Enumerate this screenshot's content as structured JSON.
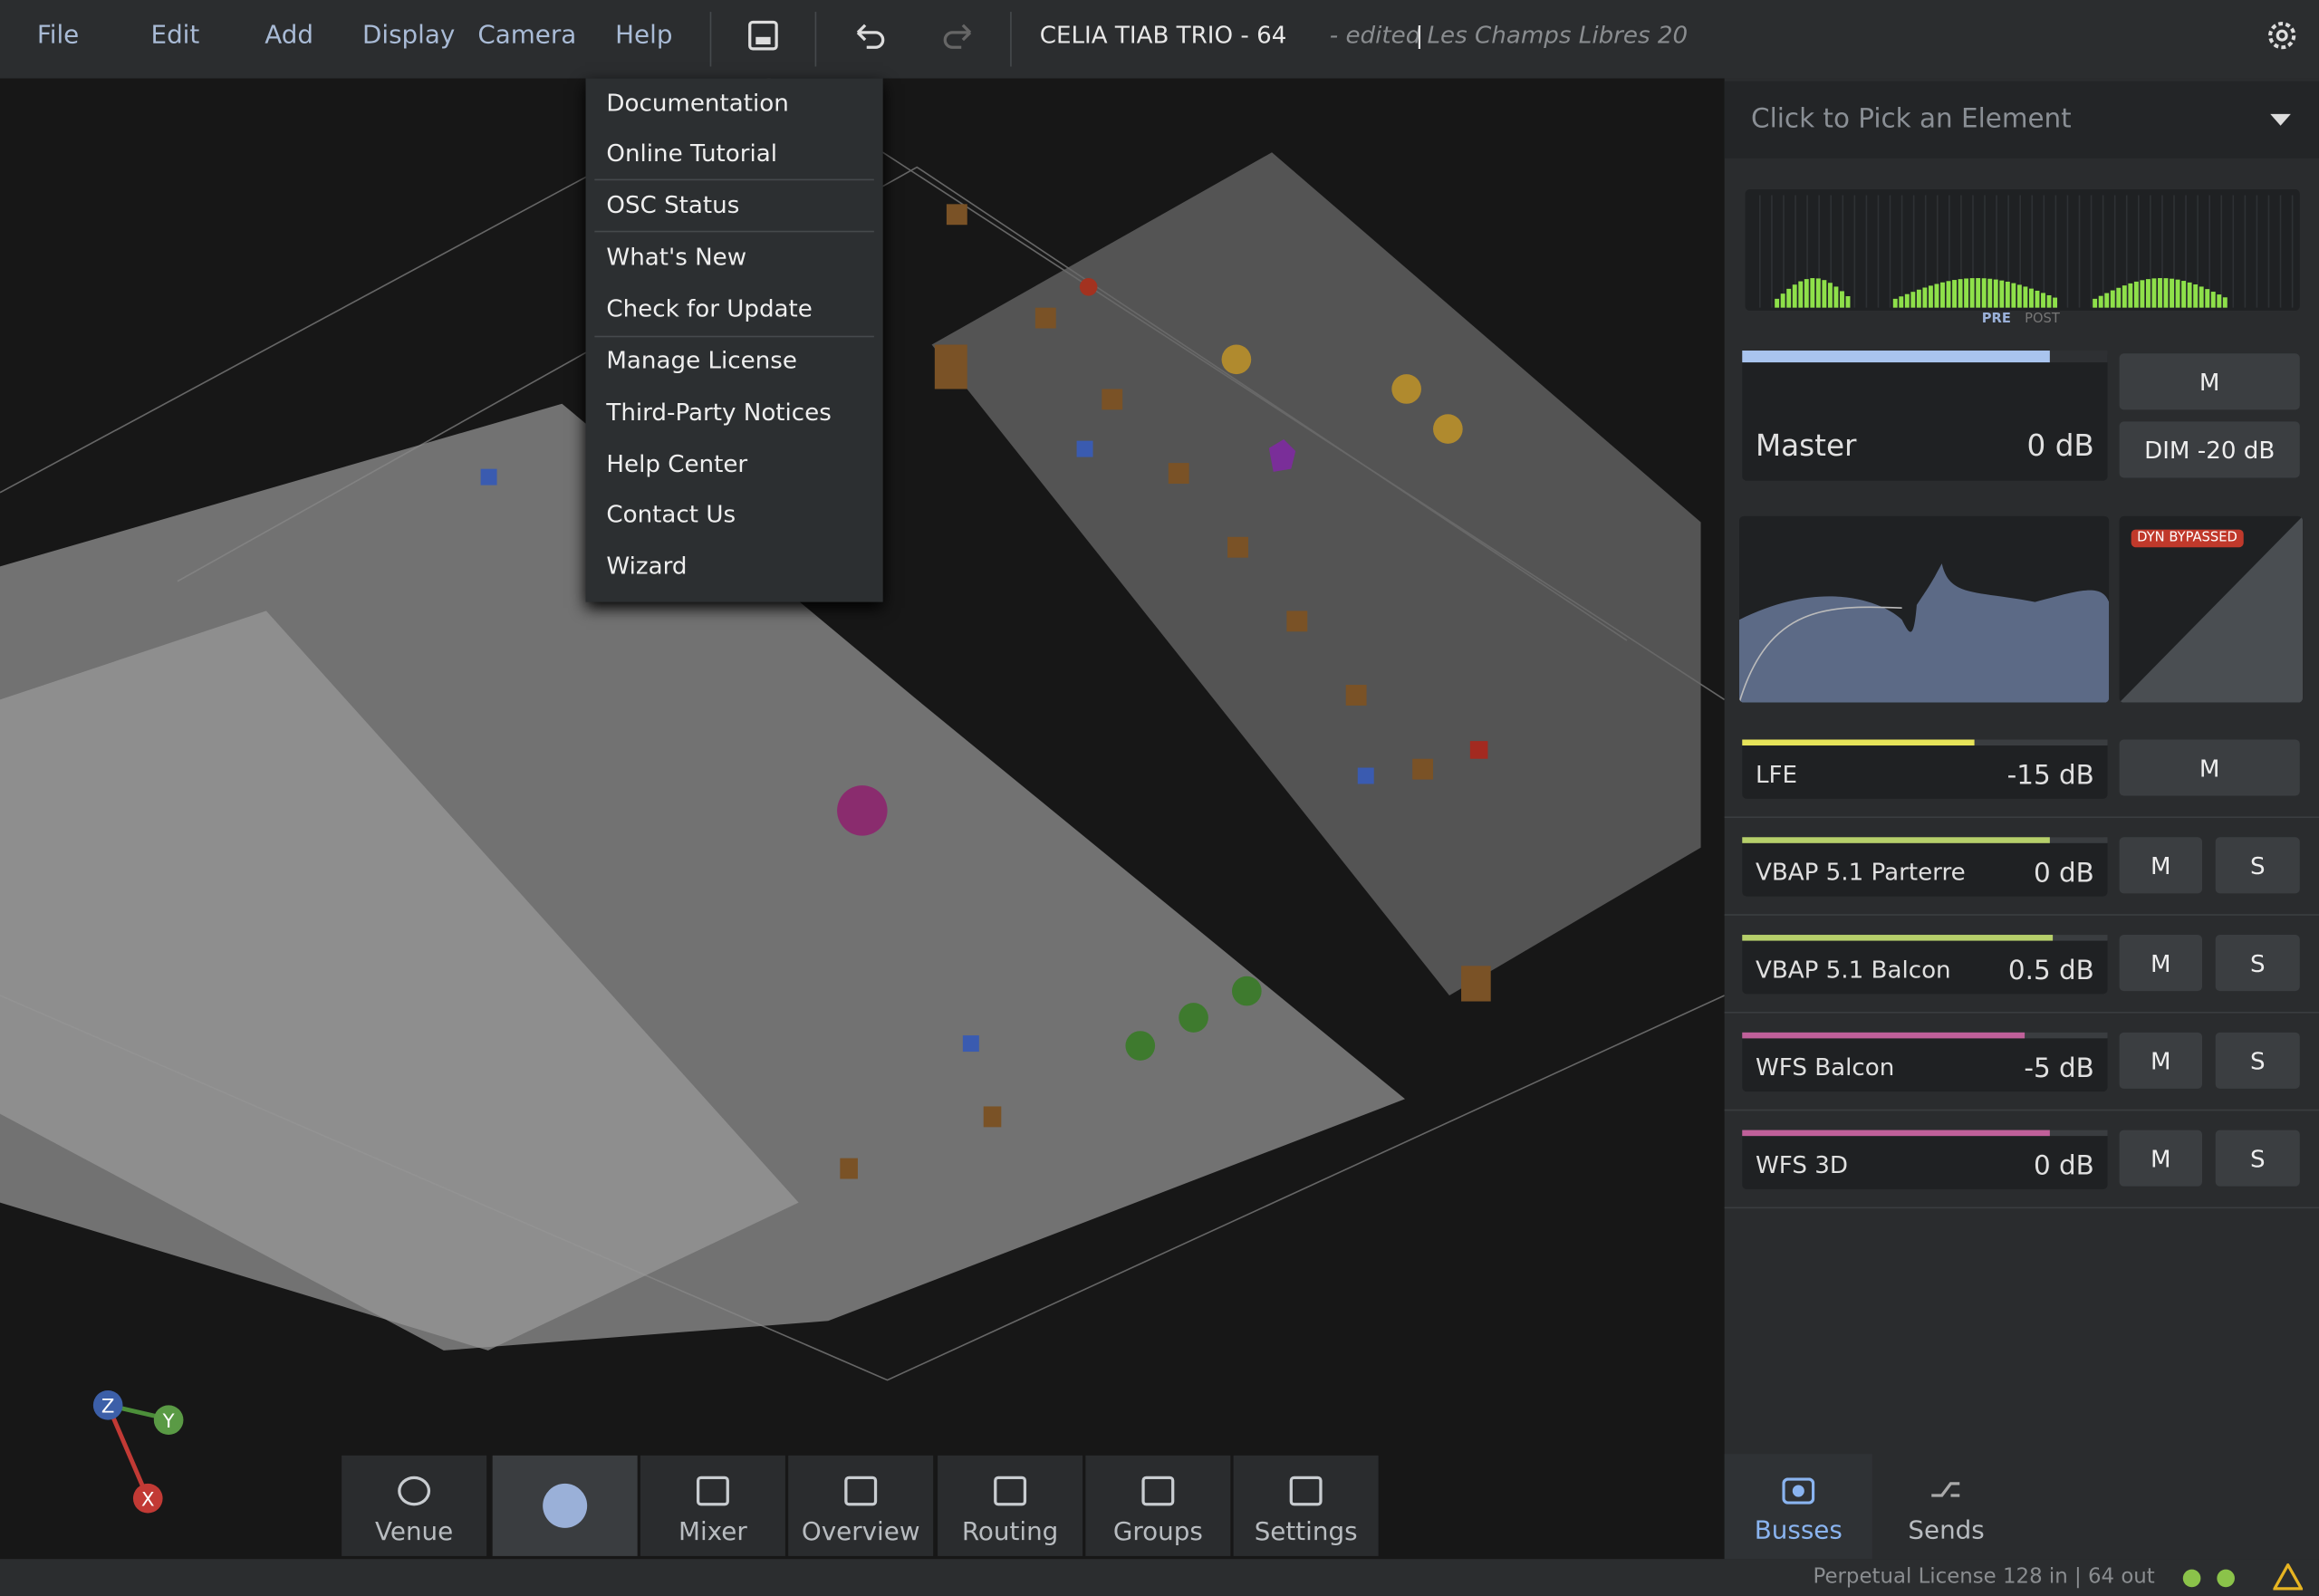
{
  "menu": [
    "File",
    "Edit",
    "Add",
    "Display",
    "Camera",
    "Help"
  ],
  "header": {
    "title": "CELIA TIAB TRIO - 64",
    "status": "- edited",
    "separator": "|",
    "project": "Les Champs Libres 20"
  },
  "help_menu": [
    "Documentation",
    "Online Tutorial",
    "OSC Status",
    "What's New",
    "Check for Update",
    "Manage License",
    "Third-Party Notices",
    "Help Center",
    "Contact Us",
    "Wizard"
  ],
  "picker": "Click to Pick an Element",
  "meter": {
    "pre": "PRE",
    "post": "POST"
  },
  "master": {
    "name": "Master",
    "level": "0 dB",
    "mute": "M",
    "dim": "DIM -20 dB"
  },
  "dynamics": "DYN BYPASSED",
  "busses": [
    {
      "name": "LFE",
      "level": "-15 dB",
      "mute": "M"
    },
    {
      "name": "VBAP 5.1 Parterre",
      "level": "0 dB",
      "mute": "M",
      "solo": "S"
    },
    {
      "name": "VBAP 5.1 Balcon",
      "level": "0.5 dB",
      "mute": "M",
      "solo": "S"
    },
    {
      "name": "WFS Balcon",
      "level": "-5 dB",
      "mute": "M",
      "solo": "S"
    },
    {
      "name": "WFS 3D",
      "level": "0 dB",
      "mute": "M",
      "solo": "S"
    }
  ],
  "gizmo": [
    "Z",
    "Y",
    "X"
  ],
  "toolbar": [
    "Venue",
    "Mixer",
    "Overview",
    "Routing",
    "Groups",
    "Settings"
  ],
  "panel_tabs": [
    "Busses",
    "Sends"
  ],
  "status_bar": "Perpetual License 128 in | 64 out"
}
